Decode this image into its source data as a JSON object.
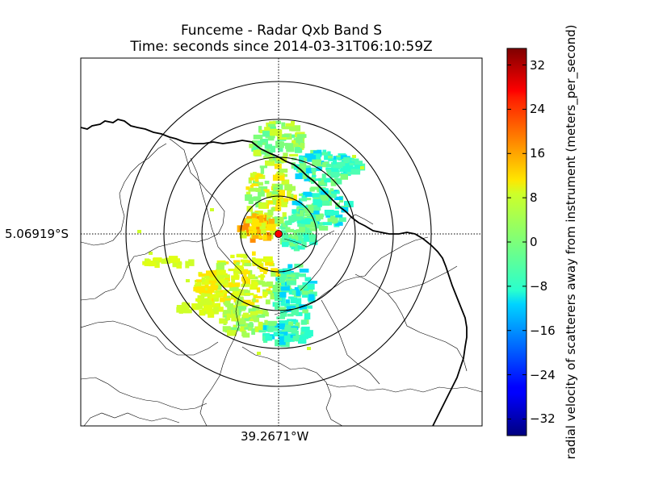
{
  "title_line1": "Funceme - Radar Qxb Band S",
  "title_line2": "Time: seconds since 2014-03-31T06:10:59Z",
  "lat_label": "5.06919°S",
  "lon_label": "39.2671°W",
  "colorbar": {
    "label": "radial velocity of scatterers away from instrument (meters_per_second)",
    "range": [
      -35,
      35
    ],
    "colormap": "jet",
    "ticks": [
      {
        "value": 32,
        "label": "32"
      },
      {
        "value": 24,
        "label": "24"
      },
      {
        "value": 16,
        "label": "16"
      },
      {
        "value": 8,
        "label": "8"
      },
      {
        "value": 0,
        "label": "0"
      },
      {
        "value": -8,
        "label": "−8"
      },
      {
        "value": -16,
        "label": "−16"
      },
      {
        "value": -24,
        "label": "−24"
      },
      {
        "value": -32,
        "label": "−32"
      }
    ]
  },
  "radar_marker_color": "#ff0000",
  "range_rings": 4,
  "colors": {
    "ring": "#000000",
    "coast": "#000000",
    "crosshair": "#000000"
  }
}
